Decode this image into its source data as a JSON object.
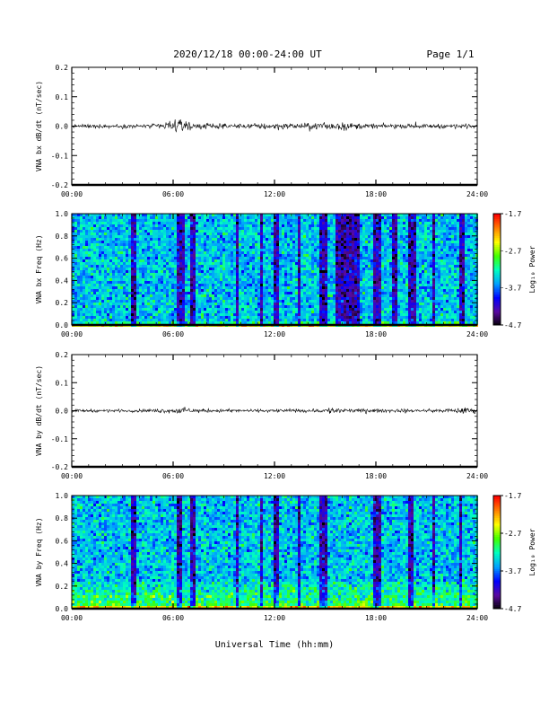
{
  "header": {
    "title": "2020/12/18  00:00-24:00 UT",
    "page": "Page 1/1"
  },
  "colors": {
    "trace": "#000000",
    "colormap": [
      "#000000",
      "#5a0aa0",
      "#0000ff",
      "#00a0ff",
      "#00ffc0",
      "#40ff00",
      "#ffff00",
      "#ff8000",
      "#ff0000"
    ]
  },
  "chart_data": [
    {
      "type": "line",
      "ylabel": "VNA bx dB/dt (nT/sec)",
      "xlim": [
        0,
        24
      ],
      "ylim": [
        -0.2,
        0.2
      ],
      "yticks": [
        "0.2",
        "0.1",
        "0.0",
        "-0.1",
        "-0.2"
      ],
      "xtick_labels": [
        "00:00",
        "06:00",
        "12:00",
        "18:00",
        "24:00"
      ],
      "envelope": {
        "hours": [
          0,
          1,
          2,
          3,
          4,
          5,
          5.5,
          6,
          6.3,
          6.7,
          7,
          8,
          9,
          10,
          11,
          11.5,
          12,
          13,
          14,
          15,
          15.5,
          16,
          17,
          18,
          19,
          20,
          21,
          22,
          23,
          24
        ],
        "amplitude": [
          0.01,
          0.01,
          0.01,
          0.01,
          0.01,
          0.012,
          0.02,
          0.025,
          0.035,
          0.03,
          0.02,
          0.015,
          0.012,
          0.012,
          0.015,
          0.02,
          0.02,
          0.015,
          0.015,
          0.02,
          0.025,
          0.02,
          0.015,
          0.012,
          0.012,
          0.01,
          0.01,
          0.012,
          0.012,
          0.012
        ]
      }
    },
    {
      "type": "heatmap",
      "ylabel": "VNA bx Freq (Hz)",
      "xlim": [
        0,
        24
      ],
      "ylim": [
        0,
        1.0
      ],
      "yticks": [
        "1.0",
        "0.8",
        "0.6",
        "0.4",
        "0.2",
        "0.0"
      ],
      "xtick_labels": [
        "00:00",
        "06:00",
        "12:00",
        "18:00",
        "24:00"
      ],
      "colorbar": {
        "label": "Log₁₀ Power",
        "ticks": [
          "-1.7",
          "-2.7",
          "-3.7",
          "-4.7"
        ],
        "range": [
          -4.7,
          -1.7
        ]
      },
      "dark_bands": [
        [
          3.4,
          3.8
        ],
        [
          6.1,
          6.6
        ],
        [
          7.0,
          7.2
        ],
        [
          9.6,
          9.8
        ],
        [
          11.0,
          11.3
        ],
        [
          11.9,
          12.2
        ],
        [
          13.3,
          13.5
        ],
        [
          14.6,
          15.1
        ],
        [
          15.6,
          17.0
        ],
        [
          17.8,
          18.2
        ],
        [
          18.9,
          19.2
        ],
        [
          19.9,
          20.3
        ],
        [
          21.2,
          21.4
        ],
        [
          22.8,
          23.2
        ]
      ],
      "low_freq_enhancement": [
        0.0,
        0.05
      ]
    },
    {
      "type": "line",
      "ylabel": "VNA by dB/dt (nT/sec)",
      "xlim": [
        0,
        24
      ],
      "ylim": [
        -0.2,
        0.2
      ],
      "yticks": [
        "0.2",
        "0.1",
        "0.0",
        "-0.1",
        "-0.2"
      ],
      "xtick_labels": [
        "00:00",
        "06:00",
        "12:00",
        "18:00",
        "24:00"
      ],
      "envelope": {
        "hours": [
          0,
          1,
          2,
          3,
          4,
          5,
          6,
          6.5,
          7,
          8,
          9,
          10,
          11,
          12,
          13,
          14,
          15,
          15.5,
          16,
          17,
          18,
          19,
          20,
          21,
          22,
          23,
          23.5,
          24
        ],
        "amplitude": [
          0.008,
          0.008,
          0.008,
          0.008,
          0.008,
          0.01,
          0.015,
          0.02,
          0.012,
          0.01,
          0.01,
          0.008,
          0.008,
          0.01,
          0.01,
          0.01,
          0.012,
          0.025,
          0.012,
          0.01,
          0.01,
          0.01,
          0.008,
          0.008,
          0.01,
          0.015,
          0.02,
          0.01
        ]
      }
    },
    {
      "type": "heatmap",
      "ylabel": "VNA by Freq (Hz)",
      "xlim": [
        0,
        24
      ],
      "ylim": [
        0,
        1.0
      ],
      "yticks": [
        "1.0",
        "0.8",
        "0.6",
        "0.4",
        "0.2",
        "0.0"
      ],
      "xtick_labels": [
        "00:00",
        "06:00",
        "12:00",
        "18:00",
        "24:00"
      ],
      "colorbar": {
        "label": "Log₁₀ Power",
        "ticks": [
          "-1.7",
          "-2.7",
          "-3.7",
          "-4.7"
        ],
        "range": [
          -4.7,
          -1.7
        ]
      },
      "dark_bands": [
        [
          3.4,
          3.8
        ],
        [
          6.1,
          6.5
        ],
        [
          7.0,
          7.2
        ],
        [
          9.6,
          9.8
        ],
        [
          11.0,
          11.3
        ],
        [
          11.9,
          12.2
        ],
        [
          13.3,
          13.5
        ],
        [
          14.6,
          15.0
        ],
        [
          17.8,
          18.3
        ],
        [
          19.8,
          20.2
        ],
        [
          21.2,
          21.4
        ],
        [
          22.8,
          23.0
        ]
      ],
      "low_freq_enhancement": [
        0.0,
        0.25
      ]
    }
  ],
  "xlabel": "Universal Time (hh:mm)"
}
